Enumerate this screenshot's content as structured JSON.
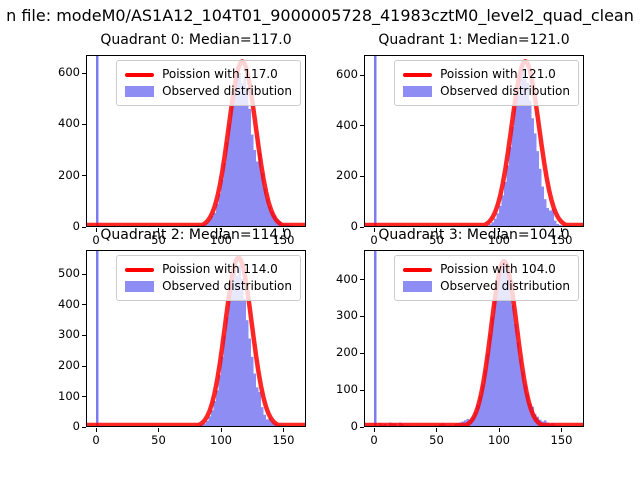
{
  "figure_title": "n file: modeM0/AS1A12_104T01_9000005728_41983cztM0_level2_quad_clean",
  "colors": {
    "histogram": "#8d8df3",
    "spike": "#7b7bf2",
    "poisson_curve": "#ff0000",
    "axis": "#000000"
  },
  "chart_data": [
    {
      "type": "histogram",
      "title": "Quadrant 0: Median=117.0",
      "median": 117.0,
      "legend": [
        "Poission with 117.0",
        "Observed distribution"
      ],
      "legend_position": "upper right",
      "xlim": [
        -8,
        168
      ],
      "ylim": [
        0,
        670
      ],
      "xticks": [
        0,
        50,
        100,
        150
      ],
      "yticks": [
        0,
        200,
        400,
        600
      ],
      "bin_width": 2,
      "spike_bar": [
        1,
        3000
      ],
      "bars": [
        [
          75,
          4
        ],
        [
          77,
          6
        ],
        [
          79,
          5
        ],
        [
          81,
          8
        ],
        [
          83,
          6
        ],
        [
          85,
          8
        ],
        [
          87,
          10
        ],
        [
          89,
          16
        ],
        [
          91,
          27
        ],
        [
          93,
          43
        ],
        [
          95,
          55
        ],
        [
          97,
          90
        ],
        [
          99,
          130
        ],
        [
          101,
          185
        ],
        [
          103,
          250
        ],
        [
          105,
          330
        ],
        [
          107,
          400
        ],
        [
          109,
          470
        ],
        [
          111,
          535
        ],
        [
          113,
          580
        ],
        [
          115,
          600
        ],
        [
          117,
          560
        ],
        [
          119,
          590
        ],
        [
          121,
          535
        ],
        [
          123,
          460
        ],
        [
          125,
          360
        ],
        [
          127,
          300
        ],
        [
          129,
          255
        ],
        [
          131,
          290
        ],
        [
          133,
          210
        ],
        [
          135,
          150
        ],
        [
          137,
          110
        ],
        [
          139,
          80
        ],
        [
          141,
          60
        ],
        [
          143,
          45
        ],
        [
          145,
          30
        ],
        [
          147,
          22
        ],
        [
          149,
          15
        ],
        [
          151,
          10
        ],
        [
          153,
          12
        ],
        [
          155,
          8
        ],
        [
          157,
          6
        ],
        [
          159,
          4
        ],
        [
          161,
          3
        ]
      ],
      "poisson": {
        "lambda": 117.0,
        "peak": 645
      }
    },
    {
      "type": "histogram",
      "title": "Quadrant 1: Median=121.0",
      "median": 121.0,
      "legend": [
        "Poission with 121.0",
        "Observed distribution"
      ],
      "legend_position": "upper right",
      "xlim": [
        -8,
        168
      ],
      "ylim": [
        0,
        680
      ],
      "xticks": [
        0,
        50,
        100,
        150
      ],
      "yticks": [
        0,
        200,
        400,
        600
      ],
      "bin_width": 2,
      "spike_bar": [
        1,
        3000
      ],
      "bars": [
        [
          87,
          3
        ],
        [
          89,
          4
        ],
        [
          91,
          6
        ],
        [
          93,
          11
        ],
        [
          95,
          19
        ],
        [
          97,
          33
        ],
        [
          99,
          54
        ],
        [
          101,
          84
        ],
        [
          103,
          125
        ],
        [
          105,
          178
        ],
        [
          107,
          243
        ],
        [
          109,
          317
        ],
        [
          111,
          396
        ],
        [
          113,
          473
        ],
        [
          115,
          540
        ],
        [
          117,
          600
        ],
        [
          119,
          620
        ],
        [
          121,
          585
        ],
        [
          123,
          570
        ],
        [
          125,
          500
        ],
        [
          127,
          430
        ],
        [
          129,
          370
        ],
        [
          131,
          300
        ],
        [
          133,
          230
        ],
        [
          135,
          160
        ],
        [
          137,
          110
        ],
        [
          139,
          75
        ],
        [
          141,
          65
        ],
        [
          143,
          70
        ],
        [
          145,
          25
        ],
        [
          147,
          12
        ],
        [
          149,
          8
        ],
        [
          151,
          5
        ],
        [
          153,
          3
        ],
        [
          155,
          2
        ]
      ],
      "poisson": {
        "lambda": 121.0,
        "peak": 655
      }
    },
    {
      "type": "histogram",
      "title": "Quadrant 2: Median=114.0",
      "median": 114.0,
      "legend": [
        "Poission with 114.0",
        "Observed distribution"
      ],
      "legend_position": "upper right",
      "xlim": [
        -8,
        168
      ],
      "ylim": [
        0,
        580
      ],
      "xticks": [
        0,
        50,
        100,
        150
      ],
      "yticks": [
        0,
        100,
        200,
        300,
        400,
        500
      ],
      "bin_width": 2,
      "spike_bar": [
        1,
        3000
      ],
      "bars": [
        [
          83,
          5
        ],
        [
          85,
          8
        ],
        [
          87,
          12
        ],
        [
          89,
          20
        ],
        [
          91,
          35
        ],
        [
          93,
          55
        ],
        [
          95,
          85
        ],
        [
          97,
          120
        ],
        [
          99,
          170
        ],
        [
          101,
          230
        ],
        [
          103,
          300
        ],
        [
          105,
          360
        ],
        [
          107,
          430
        ],
        [
          109,
          480
        ],
        [
          111,
          515
        ],
        [
          113,
          495
        ],
        [
          115,
          530
        ],
        [
          117,
          485
        ],
        [
          119,
          420
        ],
        [
          121,
          350
        ],
        [
          123,
          290
        ],
        [
          125,
          230
        ],
        [
          127,
          175
        ],
        [
          129,
          130
        ],
        [
          131,
          115
        ],
        [
          133,
          65
        ],
        [
          135,
          40
        ],
        [
          137,
          25
        ],
        [
          139,
          30
        ],
        [
          141,
          18
        ],
        [
          143,
          12
        ],
        [
          145,
          8
        ],
        [
          147,
          6
        ],
        [
          149,
          4
        ],
        [
          151,
          3
        ],
        [
          153,
          2
        ]
      ],
      "poisson": {
        "lambda": 114.0,
        "peak": 555
      }
    },
    {
      "type": "histogram",
      "title": "Quadrant 3: Median=104.0",
      "median": 104.0,
      "legend": [
        "Poission with 104.0",
        "Observed distribution"
      ],
      "legend_position": "upper right",
      "xlim": [
        -8,
        168
      ],
      "ylim": [
        0,
        480
      ],
      "xticks": [
        0,
        50,
        100,
        150
      ],
      "yticks": [
        0,
        100,
        200,
        300,
        400
      ],
      "bin_width": 2,
      "spike_bar": [
        1,
        3000
      ],
      "bars": [
        [
          5,
          10
        ],
        [
          7,
          6
        ],
        [
          9,
          8
        ],
        [
          13,
          12
        ],
        [
          15,
          10
        ],
        [
          17,
          9
        ],
        [
          21,
          12
        ],
        [
          23,
          8
        ],
        [
          27,
          5
        ],
        [
          31,
          3
        ],
        [
          35,
          4
        ],
        [
          39,
          3
        ],
        [
          45,
          3
        ],
        [
          49,
          4
        ],
        [
          53,
          8
        ],
        [
          55,
          10
        ],
        [
          57,
          6
        ],
        [
          61,
          5
        ],
        [
          65,
          8
        ],
        [
          67,
          10
        ],
        [
          69,
          12
        ],
        [
          71,
          15
        ],
        [
          73,
          18
        ],
        [
          75,
          22
        ],
        [
          77,
          20
        ],
        [
          79,
          28
        ],
        [
          81,
          40
        ],
        [
          83,
          60
        ],
        [
          85,
          85
        ],
        [
          87,
          115
        ],
        [
          89,
          155
        ],
        [
          91,
          200
        ],
        [
          93,
          250
        ],
        [
          95,
          300
        ],
        [
          97,
          350
        ],
        [
          99,
          390
        ],
        [
          101,
          425
        ],
        [
          103,
          445
        ],
        [
          105,
          450
        ],
        [
          107,
          440
        ],
        [
          109,
          415
        ],
        [
          111,
          330
        ],
        [
          113,
          280
        ],
        [
          115,
          230
        ],
        [
          117,
          185
        ],
        [
          119,
          150
        ],
        [
          121,
          115
        ],
        [
          123,
          90
        ],
        [
          125,
          65
        ],
        [
          127,
          55
        ],
        [
          129,
          35
        ],
        [
          131,
          28
        ],
        [
          133,
          20
        ],
        [
          135,
          15
        ],
        [
          137,
          18
        ],
        [
          139,
          12
        ],
        [
          141,
          8
        ],
        [
          143,
          10
        ],
        [
          145,
          6
        ],
        [
          147,
          4
        ],
        [
          149,
          5
        ],
        [
          151,
          3
        ]
      ],
      "poisson": {
        "lambda": 104.0,
        "peak": 450
      }
    }
  ]
}
